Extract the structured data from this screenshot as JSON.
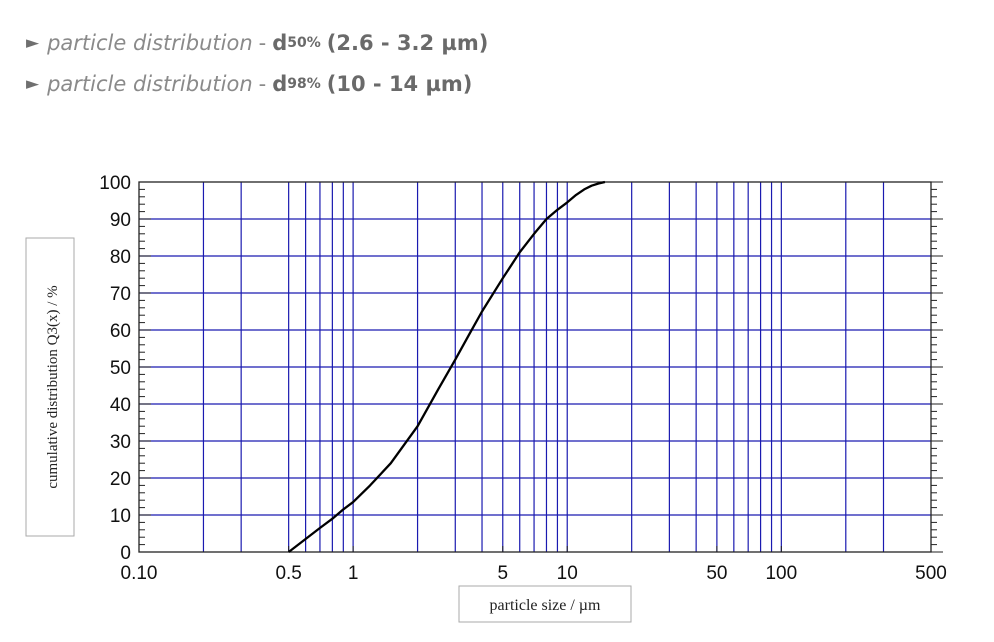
{
  "bullets": [
    {
      "arrow": "►",
      "label": "particle distribution",
      "sep": "-",
      "dname": "d",
      "dsub": "50%",
      "range": "(2.6 - 3.2 µm)"
    },
    {
      "arrow": "►",
      "label": "particle distribution",
      "sep": "-",
      "dname": "d",
      "dsub": "98%",
      "range": "(10 - 14 µm)"
    }
  ],
  "chart_data": {
    "type": "line",
    "xscale": "log",
    "xlim": [
      0.1,
      500
    ],
    "ylim": [
      0,
      100
    ],
    "xlabel": "particle size / µm",
    "ylabel": "cumulative distribution Q3(x) / %",
    "xticks": [
      {
        "v": 0.1,
        "label": "0.10"
      },
      {
        "v": 0.5,
        "label": "0.5"
      },
      {
        "v": 1,
        "label": "1"
      },
      {
        "v": 5,
        "label": "5"
      },
      {
        "v": 10,
        "label": "10"
      },
      {
        "v": 50,
        "label": "50"
      },
      {
        "v": 100,
        "label": "100"
      },
      {
        "v": 500,
        "label": "500"
      }
    ],
    "yticks": [
      0,
      10,
      20,
      30,
      40,
      50,
      60,
      70,
      80,
      90,
      100
    ],
    "grid_x": [
      0.2,
      0.3,
      0.5,
      0.6,
      0.7,
      0.8,
      0.9,
      1,
      2,
      3,
      4,
      5,
      6,
      7,
      8,
      9,
      10,
      20,
      30,
      40,
      50,
      60,
      70,
      80,
      90,
      100,
      200,
      300
    ],
    "grid": true,
    "line_color": "#000000",
    "grid_color": "#1a1ab0",
    "series": [
      {
        "x": [
          0.5,
          0.6,
          0.7,
          0.8,
          0.9,
          1.0,
          1.2,
          1.5,
          2.0,
          2.5,
          3.0,
          3.5,
          4.0,
          5.0,
          6.0,
          7.0,
          8.0,
          9.0,
          10,
          11,
          12,
          13,
          14,
          15
        ],
        "y": [
          0,
          3.5,
          6.5,
          9,
          11.5,
          13.5,
          18,
          24,
          34,
          44,
          52,
          59,
          65,
          74,
          81,
          86,
          90,
          92.5,
          94.5,
          96.5,
          98,
          99,
          99.6,
          100
        ]
      }
    ]
  }
}
